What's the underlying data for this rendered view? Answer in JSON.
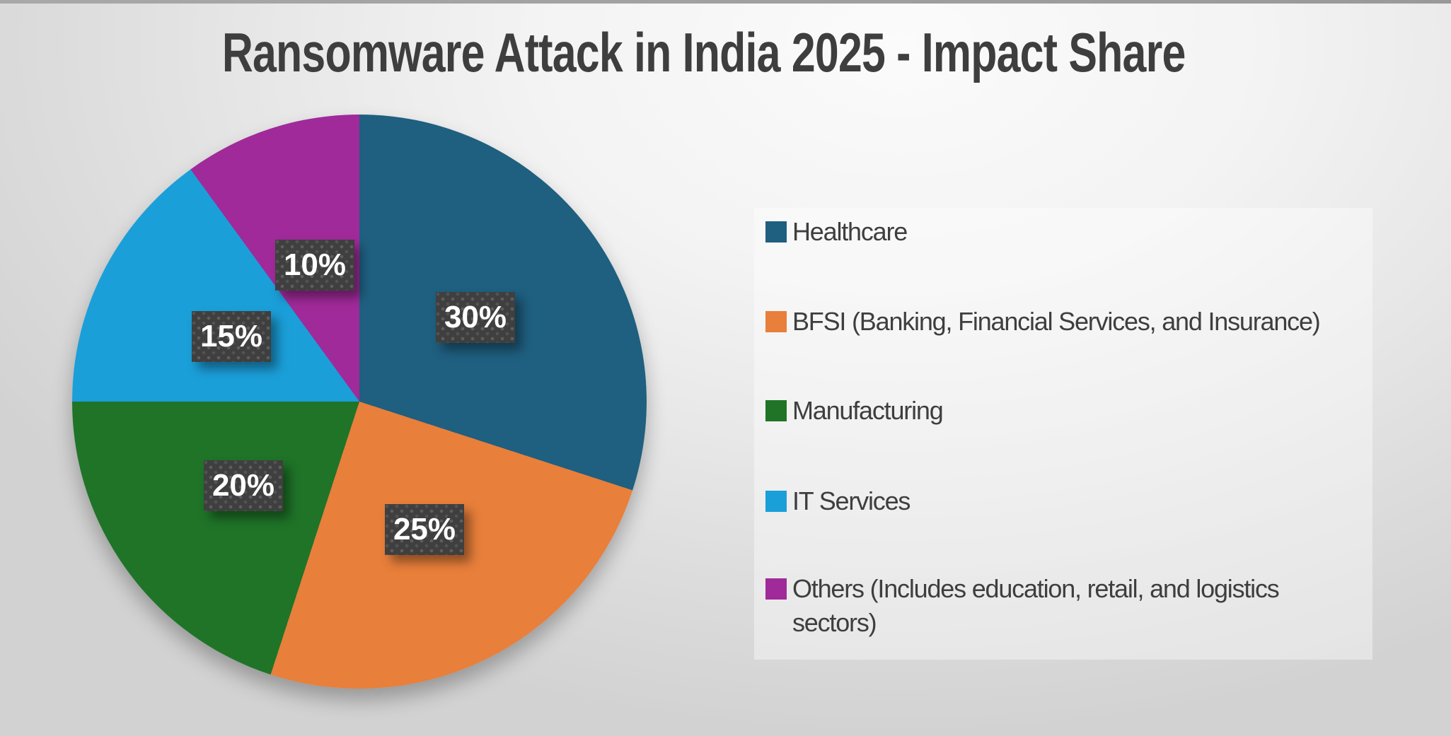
{
  "chart_data": {
    "type": "pie",
    "title": "Ransomware Attack in India 2025 - Impact Share",
    "unit": "percent",
    "direction": "clockwise",
    "start_angle_deg": 0,
    "legend_position": "right",
    "grid": false,
    "slices": [
      {
        "label": "Healthcare",
        "value": 30,
        "percent_label": "30%",
        "color": "#1f5f7f"
      },
      {
        "label": "BFSI (Banking, Financial Services, and Insurance)",
        "value": 25,
        "percent_label": "25%",
        "color": "#e87f3b"
      },
      {
        "label": "Manufacturing",
        "value": 20,
        "percent_label": "20%",
        "color": "#1f7428"
      },
      {
        "label": "IT Services",
        "value": 15,
        "percent_label": "15%",
        "color": "#1b9fd9"
      },
      {
        "label": "Others (Includes education, retail, and logistics sectors)",
        "value": 10,
        "percent_label": "10%",
        "color": "#a02a99"
      }
    ],
    "data_label_style": {
      "background": "#3f3f3f",
      "text_color": "#ffffff"
    },
    "title_color": "#3e3e3e",
    "legend_text_color": "#3e3e3e"
  }
}
